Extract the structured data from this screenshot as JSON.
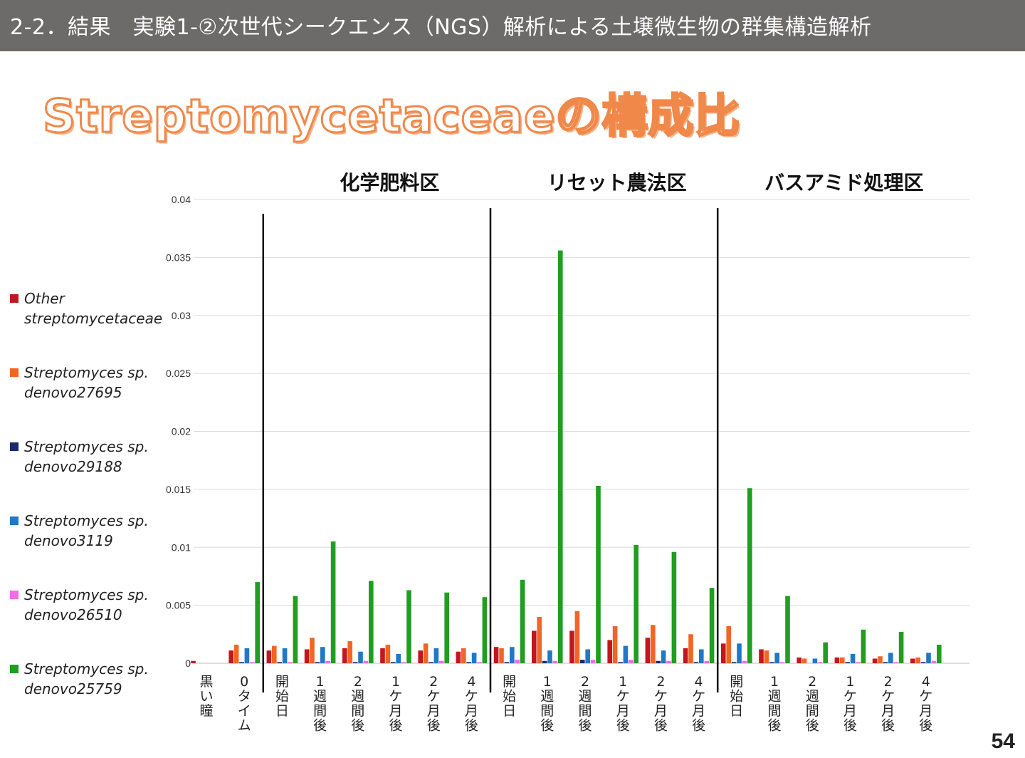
{
  "header": {
    "title": "2-2．結果　実験1-②次世代シークエンス（NGS）解析による土壌微生物の群集構造解析"
  },
  "slide": {
    "subtitle": "Streptomycetaceaeの構成比",
    "page_number": "54"
  },
  "colors": {
    "header_bg": "#6d6a6a",
    "subtitle_outline": "#f0884a",
    "series": [
      "#c4161c",
      "#f26522",
      "#1b2a6b",
      "#1f78c8",
      "#f56ae6",
      "#1f9e1f"
    ]
  },
  "chart_data": {
    "type": "bar",
    "ylim": [
      0,
      0.04
    ],
    "yticks": [
      "0",
      "0.005",
      "0.01",
      "0.015",
      "0.02",
      "0.025",
      "0.03",
      "0.035",
      "0.04"
    ],
    "grid": true,
    "legend_position": "left",
    "groups": [
      {
        "label": "",
        "categories": 2
      },
      {
        "label": "化学肥料区",
        "categories": 6
      },
      {
        "label": "リセット農法区",
        "categories": 6
      },
      {
        "label": "バスアミド処理区",
        "categories": 6
      }
    ],
    "categories": [
      "黒い瞳",
      "0タイム",
      "開始日",
      "1週間後",
      "2週間後",
      "1ケ月後",
      "2ケ月後",
      "4ケ月後",
      "開始日",
      "1週間後",
      "2週間後",
      "1ケ月後",
      "2ケ月後",
      "4ケ月後",
      "開始日",
      "1週間後",
      "2週間後",
      "1ケ月後",
      "2ケ月後",
      "4ケ月後"
    ],
    "series": [
      {
        "name": "Other streptomycetaceae",
        "name_lines": [
          "Other",
          "streptomycetaceae"
        ],
        "values": [
          0.0002,
          0.0011,
          0.0011,
          0.0012,
          0.0013,
          0.0013,
          0.0011,
          0.001,
          0.0014,
          0.0028,
          0.0028,
          0.002,
          0.0022,
          0.0013,
          0.0017,
          0.0012,
          0.0005,
          0.0005,
          0.0004,
          0.0004
        ]
      },
      {
        "name": "Streptomyces sp. denovo27695",
        "name_lines": [
          "Streptomyces sp.",
          "denovo27695"
        ],
        "values": [
          0,
          0.0016,
          0.0015,
          0.0022,
          0.0019,
          0.0016,
          0.0017,
          0.0013,
          0.0013,
          0.004,
          0.0045,
          0.0032,
          0.0033,
          0.0025,
          0.0032,
          0.0011,
          0.0004,
          0.0005,
          0.0006,
          0.0005
        ]
      },
      {
        "name": "Streptomyces sp. denovo29188",
        "name_lines": [
          "Streptomyces sp.",
          "denovo29188"
        ],
        "values": [
          0,
          0.0001,
          0.0001,
          0.0001,
          0.0001,
          0.0001,
          0.0001,
          0.0001,
          0.0001,
          0.0002,
          0.0003,
          0.0001,
          0.0002,
          0.0001,
          0.0001,
          0.0001,
          0,
          0.0001,
          0.0001,
          0.0001
        ]
      },
      {
        "name": "Streptomyces sp. denovo3119",
        "name_lines": [
          "Streptomyces sp.",
          "denovo3119"
        ],
        "values": [
          0,
          0.0013,
          0.0013,
          0.0014,
          0.001,
          0.0008,
          0.0013,
          0.0009,
          0.0014,
          0.0011,
          0.0012,
          0.0015,
          0.0011,
          0.0012,
          0.0017,
          0.0009,
          0.0004,
          0.0008,
          0.0009,
          0.0009
        ]
      },
      {
        "name": "Streptomyces sp. denovo26510",
        "name_lines": [
          "Streptomyces sp.",
          "denovo26510"
        ],
        "values": [
          0,
          0.0001,
          0.0001,
          0.0002,
          0.0002,
          0.0001,
          0.0002,
          0.0001,
          0.0003,
          0.0002,
          0.0003,
          0.0003,
          0.0002,
          0.0002,
          0.0002,
          0.0001,
          0.0001,
          0.0001,
          0.0001,
          0.0002
        ]
      },
      {
        "name": "Streptomyces sp. denovo25759",
        "name_lines": [
          "Streptomyces sp.",
          "denovo25759"
        ],
        "values": [
          0,
          0.007,
          0.0058,
          0.0105,
          0.0071,
          0.0063,
          0.0061,
          0.0057,
          0.0072,
          0.0356,
          0.0153,
          0.0102,
          0.0096,
          0.0065,
          0.0151,
          0.0058,
          0.0018,
          0.0029,
          0.0027,
          0.0016
        ]
      }
    ]
  }
}
